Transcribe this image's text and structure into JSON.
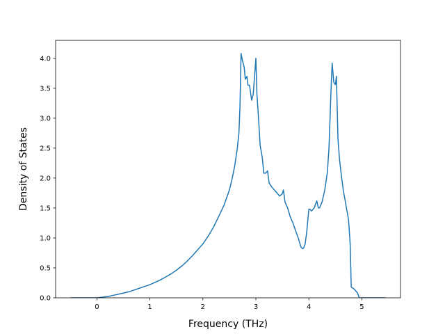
{
  "chart_data": {
    "type": "line",
    "title": "",
    "xlabel": "Frequency (THz)",
    "ylabel": "Density of States",
    "xlim": [
      -0.78,
      5.73
    ],
    "ylim": [
      0,
      4.3
    ],
    "x_ticks": [
      0,
      1,
      2,
      3,
      4,
      5
    ],
    "x_tick_labels": [
      "0",
      "1",
      "2",
      "3",
      "4",
      "5"
    ],
    "y_ticks": [
      0,
      0.5,
      1,
      1.5,
      2,
      2.5,
      3,
      3.5,
      4
    ],
    "y_tick_labels": [
      "0.0",
      "0.5",
      "1.0",
      "1.5",
      "2.0",
      "2.5",
      "3.0",
      "3.5",
      "4.0"
    ],
    "grid": false,
    "legend": "none",
    "series": [
      {
        "color": "#1f77b4",
        "x": [
          -0.5,
          -0.3,
          -0.1,
          0.0,
          0.1,
          0.2,
          0.3,
          0.4,
          0.5,
          0.6,
          0.7,
          0.8,
          0.9,
          1.0,
          1.1,
          1.2,
          1.3,
          1.4,
          1.5,
          1.6,
          1.7,
          1.8,
          1.9,
          2.0,
          2.1,
          2.2,
          2.3,
          2.4,
          2.5,
          2.55,
          2.6,
          2.65,
          2.68,
          2.7,
          2.72,
          2.75,
          2.78,
          2.8,
          2.83,
          2.85,
          2.88,
          2.92,
          2.95,
          3.0,
          3.02,
          3.05,
          3.08,
          3.12,
          3.15,
          3.18,
          3.22,
          3.25,
          3.3,
          3.35,
          3.4,
          3.45,
          3.5,
          3.52,
          3.55,
          3.6,
          3.65,
          3.7,
          3.75,
          3.8,
          3.85,
          3.88,
          3.9,
          3.93,
          3.96,
          4.0,
          4.02,
          4.05,
          4.1,
          4.15,
          4.18,
          4.2,
          4.25,
          4.3,
          4.35,
          4.38,
          4.4,
          4.42,
          4.44,
          4.47,
          4.5,
          4.52,
          4.55,
          4.58,
          4.62,
          4.65,
          4.7,
          4.75,
          4.78,
          4.8,
          4.85,
          4.88,
          4.92,
          4.95,
          5.0,
          5.1,
          5.3,
          5.45
        ],
        "y": [
          0.0,
          0.0,
          0.0,
          0.0,
          0.01,
          0.02,
          0.04,
          0.06,
          0.08,
          0.1,
          0.13,
          0.16,
          0.19,
          0.22,
          0.26,
          0.3,
          0.35,
          0.4,
          0.46,
          0.53,
          0.61,
          0.7,
          0.8,
          0.9,
          1.03,
          1.18,
          1.36,
          1.55,
          1.8,
          1.98,
          2.2,
          2.5,
          2.75,
          3.2,
          4.08,
          3.95,
          3.85,
          3.65,
          3.7,
          3.55,
          3.55,
          3.3,
          3.4,
          4.0,
          3.4,
          3.0,
          2.55,
          2.35,
          2.08,
          2.08,
          2.12,
          1.92,
          1.85,
          1.8,
          1.75,
          1.7,
          1.74,
          1.8,
          1.6,
          1.5,
          1.35,
          1.25,
          1.12,
          1.0,
          0.85,
          0.82,
          0.83,
          0.9,
          1.1,
          1.48,
          1.48,
          1.45,
          1.5,
          1.62,
          1.5,
          1.5,
          1.6,
          1.8,
          2.1,
          2.5,
          3.0,
          3.5,
          3.92,
          3.6,
          3.56,
          3.7,
          2.65,
          2.3,
          2.0,
          1.8,
          1.55,
          1.3,
          0.9,
          0.18,
          0.15,
          0.12,
          0.08,
          0.0,
          0.0,
          0.0,
          0.0,
          0.0
        ]
      }
    ]
  }
}
